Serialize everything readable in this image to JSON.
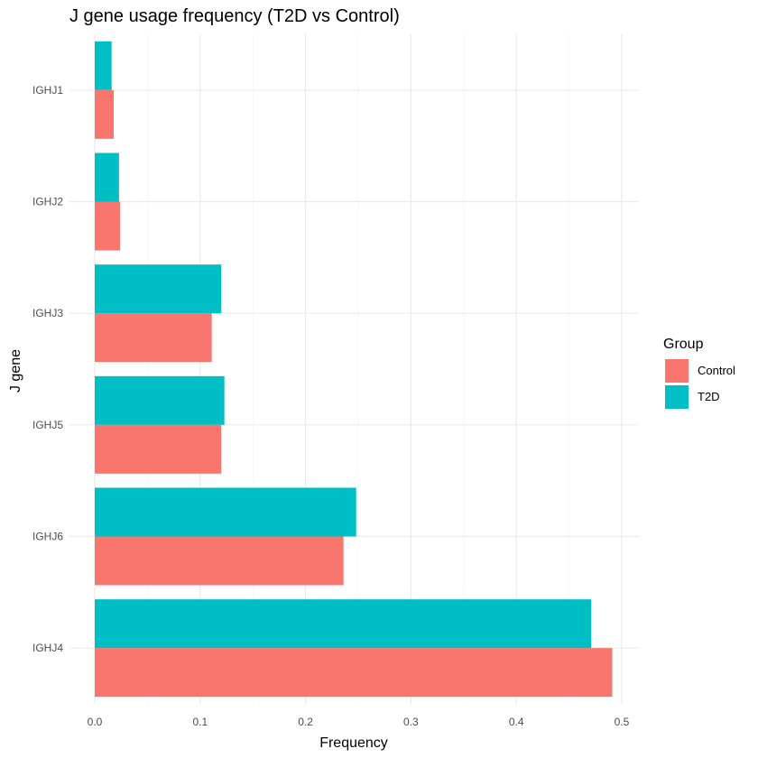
{
  "chart_data": {
    "type": "bar",
    "orientation": "horizontal",
    "title": "J gene usage frequency (T2D vs Control)",
    "xlabel": "Frequency",
    "ylabel": "J gene",
    "xlim": [
      0,
      0.5
    ],
    "xticks": [
      0.0,
      0.1,
      0.2,
      0.3,
      0.4,
      0.5
    ],
    "xtick_labels": [
      "0.0",
      "0.1",
      "0.2",
      "0.3",
      "0.4",
      "0.5"
    ],
    "categories": [
      "IGHJ1",
      "IGHJ2",
      "IGHJ3",
      "IGHJ5",
      "IGHJ6",
      "IGHJ4"
    ],
    "series": [
      {
        "name": "Control",
        "color": "#F8766D",
        "values": [
          0.018,
          0.024,
          0.111,
          0.12,
          0.236,
          0.491
        ]
      },
      {
        "name": "T2D",
        "color": "#00BFC4",
        "values": [
          0.016,
          0.023,
          0.12,
          0.123,
          0.248,
          0.471
        ]
      }
    ],
    "legend": {
      "title": "Group",
      "position": "right"
    },
    "grid": true
  }
}
